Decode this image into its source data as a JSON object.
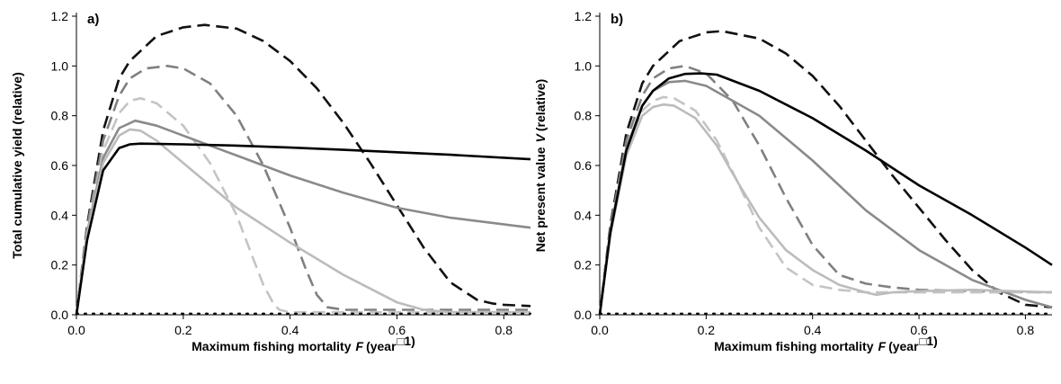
{
  "chart_data": [
    {
      "type": "line",
      "panel_label": "a)",
      "xlabel": "Maximum fishing mortality",
      "xlabel_symbol": "F",
      "xlabel_unit": "(year",
      "xlabel_unit_tail": "1)",
      "ylabel": "Total cumulative yield (relative)",
      "xlim": [
        0,
        0.85
      ],
      "ylim": [
        0,
        1.2
      ],
      "xticks": [
        "0.0",
        "0.2",
        "0.4",
        "0.6",
        "0.8"
      ],
      "yticks": [
        "0.0",
        "0.2",
        "0.4",
        "0.6",
        "0.8",
        "1.0",
        "1.2"
      ],
      "grid": false,
      "series": [
        {
          "style": "dashed",
          "color": "#111111",
          "x": [
            0,
            0.02,
            0.05,
            0.08,
            0.1,
            0.15,
            0.2,
            0.24,
            0.3,
            0.35,
            0.4,
            0.45,
            0.5,
            0.55,
            0.6,
            0.65,
            0.7,
            0.75,
            0.78,
            0.8,
            0.85
          ],
          "y": [
            0,
            0.36,
            0.74,
            0.95,
            1.02,
            1.12,
            1.155,
            1.165,
            1.15,
            1.1,
            1.02,
            0.91,
            0.77,
            0.61,
            0.44,
            0.27,
            0.13,
            0.06,
            0.045,
            0.04,
            0.035
          ]
        },
        {
          "style": "dashed",
          "color": "#808080",
          "x": [
            0,
            0.02,
            0.05,
            0.08,
            0.1,
            0.13,
            0.17,
            0.2,
            0.25,
            0.3,
            0.35,
            0.4,
            0.43,
            0.45,
            0.47,
            0.5,
            0.6,
            0.7,
            0.85
          ],
          "y": [
            0,
            0.35,
            0.7,
            0.88,
            0.95,
            0.99,
            1.0,
            0.99,
            0.93,
            0.8,
            0.6,
            0.35,
            0.18,
            0.08,
            0.03,
            0.02,
            0.02,
            0.02,
            0.02
          ]
        },
        {
          "style": "dashed",
          "color": "#c4c4c4",
          "x": [
            0,
            0.02,
            0.05,
            0.08,
            0.1,
            0.12,
            0.15,
            0.2,
            0.25,
            0.3,
            0.33,
            0.35,
            0.37,
            0.38,
            0.4,
            0.5,
            0.6,
            0.85
          ],
          "y": [
            0,
            0.33,
            0.66,
            0.81,
            0.86,
            0.87,
            0.85,
            0.76,
            0.61,
            0.4,
            0.23,
            0.12,
            0.04,
            0.02,
            0.01,
            0.01,
            0.01,
            0.01
          ]
        },
        {
          "style": "solid",
          "color": "#8a8a8a",
          "x": [
            0,
            0.02,
            0.05,
            0.08,
            0.11,
            0.15,
            0.2,
            0.3,
            0.4,
            0.5,
            0.6,
            0.7,
            0.85
          ],
          "y": [
            0,
            0.33,
            0.63,
            0.75,
            0.78,
            0.76,
            0.72,
            0.64,
            0.56,
            0.49,
            0.43,
            0.39,
            0.35
          ]
        },
        {
          "style": "solid",
          "color": "#bcbcbc",
          "x": [
            0,
            0.02,
            0.05,
            0.08,
            0.1,
            0.12,
            0.15,
            0.2,
            0.3,
            0.4,
            0.5,
            0.6,
            0.65,
            0.7,
            0.85
          ],
          "y": [
            0,
            0.32,
            0.61,
            0.72,
            0.745,
            0.74,
            0.7,
            0.61,
            0.43,
            0.29,
            0.16,
            0.05,
            0.02,
            0.01,
            0.01
          ]
        },
        {
          "style": "solid",
          "color": "#000000",
          "x": [
            0,
            0.02,
            0.05,
            0.08,
            0.1,
            0.12,
            0.2,
            0.3,
            0.4,
            0.5,
            0.6,
            0.7,
            0.85
          ],
          "y": [
            0,
            0.3,
            0.58,
            0.67,
            0.685,
            0.688,
            0.685,
            0.68,
            0.672,
            0.663,
            0.653,
            0.643,
            0.625
          ]
        },
        {
          "style": "dotted",
          "color": "#000000",
          "x": [
            0,
            0.85
          ],
          "y": [
            0.005,
            0.005
          ]
        }
      ]
    },
    {
      "type": "line",
      "panel_label": "b)",
      "xlabel": "Maximum fishing mortality",
      "xlabel_symbol": "F",
      "xlabel_unit": "(year",
      "xlabel_unit_tail": "1)",
      "ylabel": "Net present value",
      "ylabel_symbol": "V",
      "ylabel_tail": "(relative)",
      "xlim": [
        0,
        0.85
      ],
      "ylim": [
        0,
        1.2
      ],
      "xticks": [
        "0.0",
        "0.2",
        "0.4",
        "0.6",
        "0.8"
      ],
      "yticks": [
        "0.0",
        "0.2",
        "0.4",
        "0.6",
        "0.8",
        "1.0",
        "1.2"
      ],
      "grid": false,
      "series": [
        {
          "style": "dashed",
          "color": "#111111",
          "x": [
            0,
            0.02,
            0.05,
            0.08,
            0.1,
            0.15,
            0.2,
            0.23,
            0.3,
            0.35,
            0.4,
            0.45,
            0.5,
            0.55,
            0.6,
            0.65,
            0.7,
            0.75,
            0.8,
            0.85
          ],
          "y": [
            0,
            0.36,
            0.73,
            0.93,
            1.0,
            1.1,
            1.135,
            1.14,
            1.11,
            1.05,
            0.96,
            0.84,
            0.7,
            0.56,
            0.43,
            0.3,
            0.18,
            0.09,
            0.04,
            0.03
          ]
        },
        {
          "style": "dashed",
          "color": "#808080",
          "x": [
            0,
            0.02,
            0.05,
            0.08,
            0.1,
            0.13,
            0.16,
            0.2,
            0.25,
            0.3,
            0.35,
            0.4,
            0.45,
            0.5,
            0.55,
            0.6,
            0.7,
            0.85
          ],
          "y": [
            0,
            0.35,
            0.7,
            0.88,
            0.95,
            0.99,
            1.0,
            0.97,
            0.86,
            0.68,
            0.47,
            0.28,
            0.16,
            0.125,
            0.11,
            0.1,
            0.095,
            0.09
          ]
        },
        {
          "style": "dashed",
          "color": "#c4c4c4",
          "x": [
            0,
            0.02,
            0.05,
            0.08,
            0.1,
            0.12,
            0.14,
            0.18,
            0.22,
            0.26,
            0.3,
            0.35,
            0.4,
            0.45,
            0.5,
            0.6,
            0.7,
            0.85
          ],
          "y": [
            0,
            0.33,
            0.66,
            0.82,
            0.86,
            0.875,
            0.87,
            0.82,
            0.7,
            0.53,
            0.35,
            0.19,
            0.12,
            0.1,
            0.09,
            0.09,
            0.09,
            0.09
          ]
        },
        {
          "style": "solid",
          "color": "#8a8a8a",
          "x": [
            0,
            0.02,
            0.05,
            0.08,
            0.1,
            0.13,
            0.16,
            0.2,
            0.3,
            0.4,
            0.5,
            0.6,
            0.7,
            0.8,
            0.85
          ],
          "y": [
            0,
            0.34,
            0.67,
            0.84,
            0.9,
            0.935,
            0.94,
            0.92,
            0.8,
            0.62,
            0.42,
            0.26,
            0.14,
            0.06,
            0.03
          ]
        },
        {
          "style": "solid",
          "color": "#bcbcbc",
          "x": [
            0,
            0.02,
            0.05,
            0.08,
            0.1,
            0.12,
            0.14,
            0.18,
            0.22,
            0.26,
            0.3,
            0.35,
            0.4,
            0.45,
            0.5,
            0.52,
            0.55,
            0.6,
            0.7,
            0.85
          ],
          "y": [
            0,
            0.32,
            0.64,
            0.8,
            0.835,
            0.845,
            0.84,
            0.79,
            0.68,
            0.53,
            0.39,
            0.26,
            0.18,
            0.12,
            0.09,
            0.08,
            0.09,
            0.095,
            0.1,
            0.09
          ]
        },
        {
          "style": "solid",
          "color": "#000000",
          "x": [
            0,
            0.02,
            0.05,
            0.08,
            0.1,
            0.13,
            0.16,
            0.19,
            0.22,
            0.3,
            0.4,
            0.5,
            0.6,
            0.7,
            0.8,
            0.85
          ],
          "y": [
            0,
            0.33,
            0.66,
            0.84,
            0.9,
            0.95,
            0.968,
            0.97,
            0.965,
            0.9,
            0.79,
            0.66,
            0.52,
            0.4,
            0.27,
            0.2
          ]
        },
        {
          "style": "dotted",
          "color": "#000000",
          "x": [
            0,
            0.85
          ],
          "y": [
            0.005,
            0.005
          ]
        }
      ]
    }
  ]
}
